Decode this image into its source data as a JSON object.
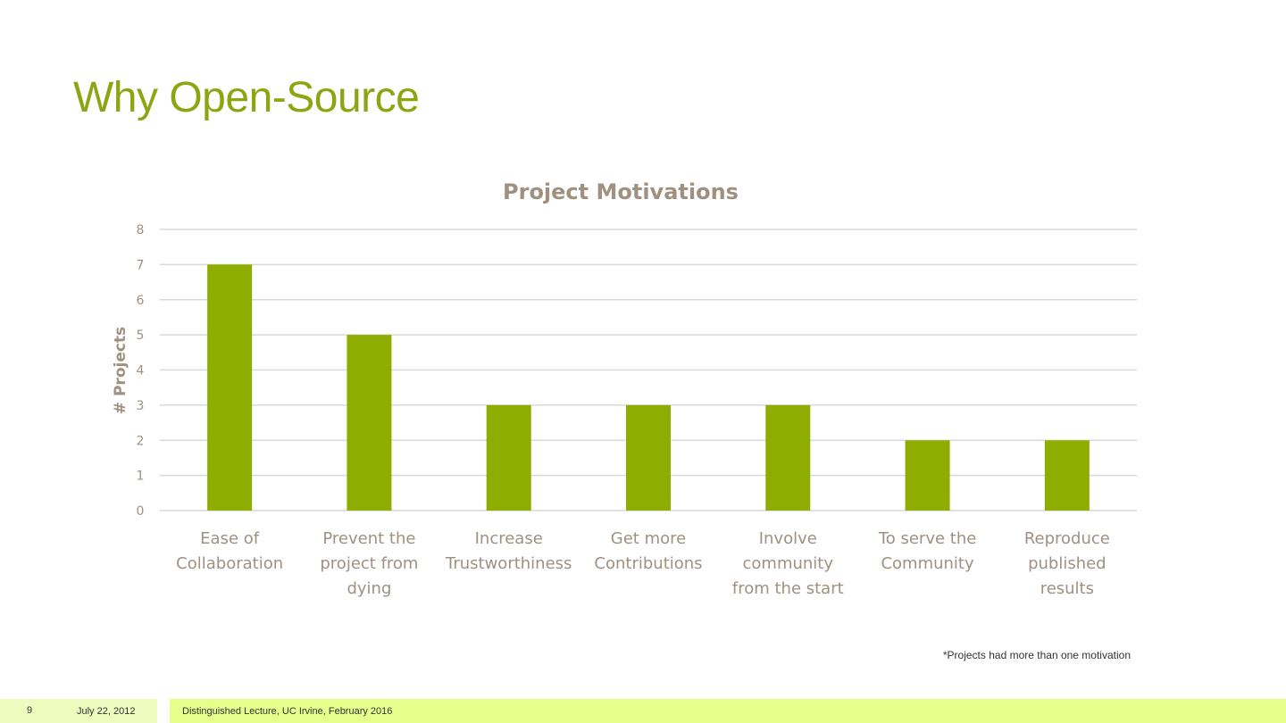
{
  "slide": {
    "title": "Why Open-Source",
    "footnote": "*Projects had more than one motivation"
  },
  "footer": {
    "page_number": "9",
    "date": "July 22, 2012",
    "event": "Distinguished Lecture, UC Irvine, February 2016"
  },
  "colors": {
    "title": "#8aa612",
    "bar": "#8fad00",
    "axis_text": "#a09080",
    "grid": "#d9d9d9"
  },
  "chart_data": {
    "type": "bar",
    "title": "Project Motivations",
    "ylabel": "# Projects",
    "xlabel": "",
    "ylim": [
      0,
      8
    ],
    "yticks": [
      0,
      1,
      2,
      3,
      4,
      5,
      6,
      7,
      8
    ],
    "grid": true,
    "categories": [
      [
        "Ease of",
        "Collaboration"
      ],
      [
        "Prevent the",
        "project from",
        "dying"
      ],
      [
        "Increase",
        "Trustworthiness"
      ],
      [
        "Get more",
        "Contributions"
      ],
      [
        "Involve",
        "community",
        "from the start"
      ],
      [
        "To serve the",
        "Community"
      ],
      [
        "Reproduce",
        "published",
        "results"
      ]
    ],
    "values": [
      7,
      5,
      3,
      3,
      3,
      2,
      2
    ]
  }
}
